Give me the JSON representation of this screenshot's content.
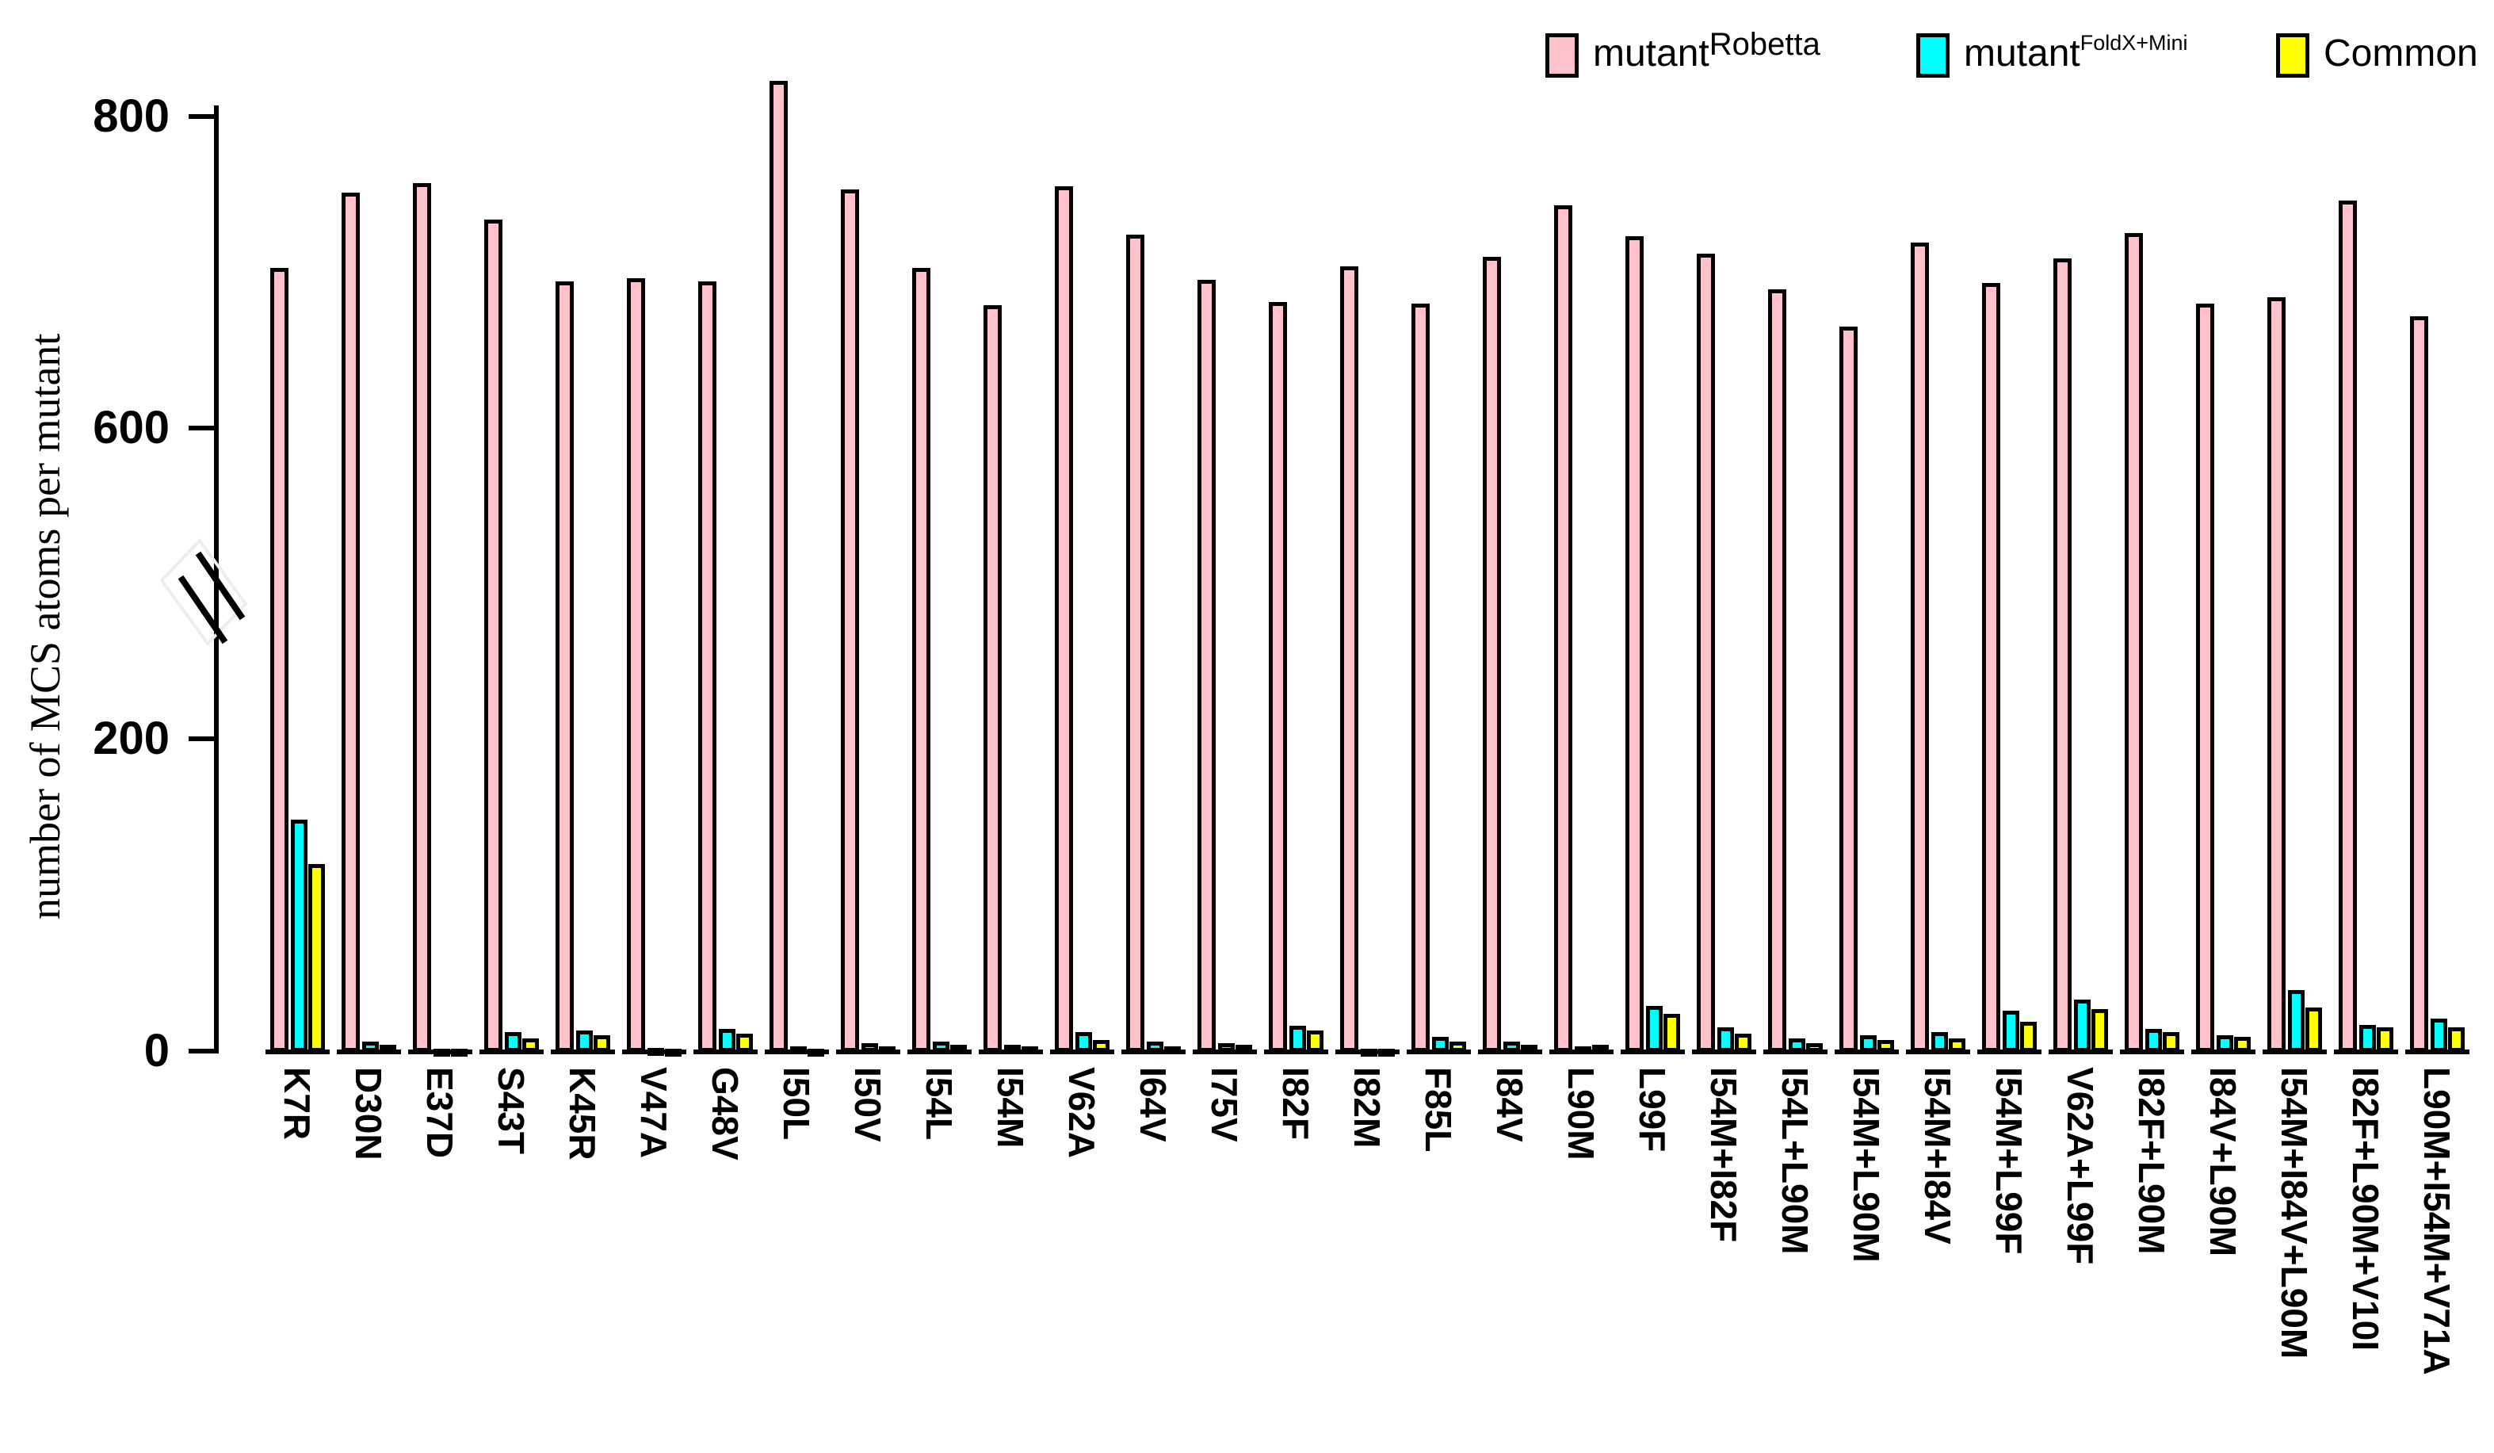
{
  "chart_data": {
    "type": "bar",
    "title": "",
    "ylabel": "number of MCS atoms per mutant",
    "xlabel": "",
    "yticks": [
      0,
      200,
      600,
      800
    ],
    "ylim": [
      0,
      830
    ],
    "axis_break": {
      "between": [
        200,
        600
      ],
      "note": "broken y-axis indicated by double slash between 200 and 600"
    },
    "grid": false,
    "legend_position": "top-right",
    "categories": [
      "K7R",
      "D30N",
      "E37D",
      "S43T",
      "K45R",
      "V47A",
      "G48V",
      "I50L",
      "I50V",
      "I54L",
      "I54M",
      "V62A",
      "I64V",
      "I75V",
      "I82F",
      "I82M",
      "F85L",
      "I84V",
      "L90M",
      "L99F",
      "I54M+I82F",
      "I54L+L90M",
      "I54M+L90M",
      "I54M+I84V",
      "I54M+L99F",
      "V62A+L99F",
      "I82F+L90M",
      "I84V+L90M",
      "I54M+I84V+L90M",
      "I82F+L90M+V10I",
      "L90M+I54M+V71A"
    ],
    "series": [
      {
        "name": "mutant^Robetta",
        "color": "#ffc2cd",
        "values": [
          703,
          751,
          757,
          734,
          694,
          696,
          694,
          823,
          753,
          703,
          679,
          755,
          724,
          695,
          681,
          704,
          680,
          710,
          743,
          723,
          712,
          689,
          665,
          719,
          693,
          709,
          725,
          680,
          684,
          746,
          672
        ]
      },
      {
        "name": "mutant^FoldX+Mini",
        "color": "#00ffff",
        "values": [
          148,
          6,
          1,
          12,
          13,
          2,
          14,
          3,
          5,
          6,
          4,
          12,
          6,
          5,
          16,
          1,
          9,
          6,
          3,
          29,
          15,
          8,
          10,
          12,
          26,
          33,
          14,
          10,
          39,
          17,
          21
        ]
      },
      {
        "name": "Common",
        "color": "#ffff00",
        "values": [
          120,
          4,
          1,
          8,
          10,
          1,
          11,
          1,
          3,
          4,
          3,
          7,
          3,
          4,
          13,
          0,
          6,
          4,
          4,
          24,
          11,
          5,
          7,
          8,
          19,
          27,
          12,
          9,
          28,
          15,
          15
        ]
      }
    ]
  },
  "legend": {
    "items": [
      {
        "base": "mutant",
        "sup": "Robetta"
      },
      {
        "base": "mutant",
        "sup": "FoldX+Mini"
      },
      {
        "base": "Common",
        "sup": ""
      }
    ]
  },
  "colors": {
    "robetta": "#ffc2cd",
    "foldx_mini": "#00ffff",
    "common": "#ffff00",
    "axis": "#000000",
    "background": "#ffffff"
  }
}
